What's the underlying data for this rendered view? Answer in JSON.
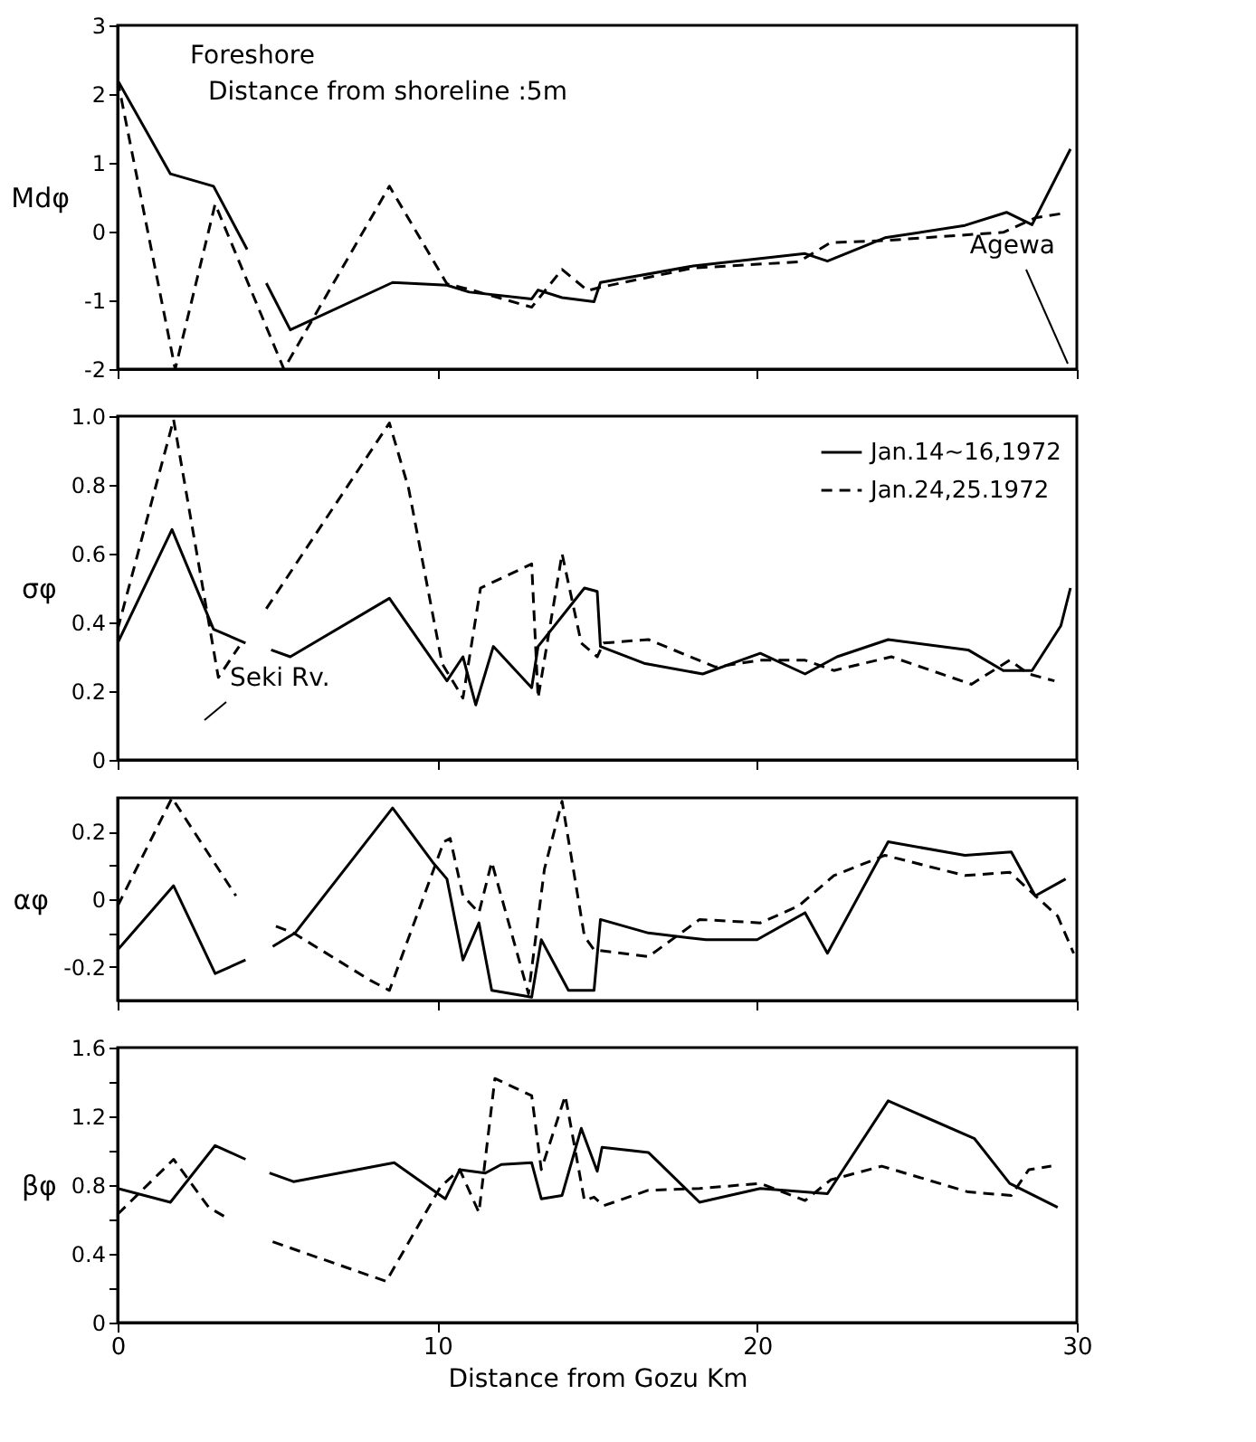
{
  "chart_data": [
    {
      "type": "line",
      "ylabel": "Mdφ",
      "xlim": [
        0,
        30
      ],
      "xticks": [
        0,
        10,
        20,
        30
      ],
      "ylim": [
        -2,
        3
      ],
      "yticks": [
        -2,
        -1,
        0,
        1,
        2,
        3
      ],
      "grid": false,
      "tick_labels": "y",
      "annotations": [
        "Foreshore",
        "Distance from shoreline :5m",
        "Agewa"
      ],
      "series": [
        {
          "color": "#000000",
          "line_style": "solid",
          "x": [
            0,
            1.65,
            3.0,
            4.05,
            4.3,
            4.65,
            5.4,
            8.6,
            10.3,
            11.0,
            12.95,
            13.15,
            13.9,
            14.9,
            15.1,
            18.0,
            21.5,
            22.2,
            24.0,
            26.5,
            27.8,
            28.6,
            29.8
          ],
          "values": [
            2.2,
            0.84,
            0.66,
            -0.26,
            null,
            -0.75,
            -1.43,
            -0.74,
            -0.78,
            -0.88,
            -0.98,
            -0.85,
            -0.96,
            -1.02,
            -0.74,
            -0.5,
            -0.32,
            -0.43,
            -0.09,
            0.09,
            0.28,
            0.1,
            1.2
          ]
        },
        {
          "color": "#000000",
          "line_style": "dashed",
          "x": [
            0,
            1.8,
            3.05,
            5.2,
            8.5,
            10.3,
            11.0,
            12.95,
            13.9,
            14.7,
            15.1,
            18.0,
            21.3,
            22.3,
            24.0,
            27.7,
            28.7,
            29.5
          ],
          "values": [
            2.2,
            -2.0,
            0.4,
            -2.0,
            0.66,
            -0.76,
            -0.84,
            -1.1,
            -0.55,
            -0.86,
            -0.81,
            -0.53,
            -0.44,
            -0.16,
            -0.13,
            -0.01,
            0.2,
            0.26
          ]
        }
      ]
    },
    {
      "type": "line",
      "ylabel": "σφ",
      "xlim": [
        0,
        30
      ],
      "xticks": [
        0,
        10,
        20,
        30
      ],
      "ylim": [
        0,
        1
      ],
      "yticks": [
        {
          "value": 0,
          "label": "0"
        },
        0.2,
        0.4,
        0.6,
        0.8,
        {
          "value": 1,
          "label": "1.0"
        }
      ],
      "grid": false,
      "tick_labels": "y",
      "legend": "top right",
      "annotations": [
        "Seki Rv."
      ],
      "series": [
        {
          "name": "Jan.14~16,1972",
          "color": "#000000",
          "line_style": "solid",
          "x": [
            0,
            1.7,
            3.0,
            4.0,
            4.3,
            4.8,
            5.4,
            8.5,
            10.3,
            10.8,
            11.2,
            11.75,
            12.95,
            13.15,
            14.6,
            15.0,
            15.1,
            16.5,
            18.3,
            20.1,
            21.5,
            22.5,
            24.1,
            26.6,
            27.7,
            28.6,
            29.5,
            29.8
          ],
          "values": [
            0.34,
            0.67,
            0.38,
            0.34,
            null,
            0.32,
            0.3,
            0.47,
            0.23,
            0.3,
            0.16,
            0.33,
            0.21,
            0.33,
            0.5,
            0.49,
            0.33,
            0.28,
            0.25,
            0.31,
            0.25,
            0.3,
            0.35,
            0.32,
            0.26,
            0.26,
            0.39,
            0.5
          ]
        },
        {
          "name": "Jan.24,25.1972",
          "color": "#000000",
          "line_style": "dashed",
          "x": [
            0,
            1.75,
            3.15,
            3.8,
            4.3,
            4.65,
            8.5,
            9.1,
            10.15,
            10.8,
            11.35,
            12.95,
            13.15,
            13.9,
            14.5,
            15.0,
            15.2,
            16.6,
            18.7,
            20.1,
            21.5,
            22.4,
            24.2,
            26.7,
            27.9,
            28.5,
            29.3
          ],
          "values": [
            0.38,
            0.99,
            0.24,
            0.33,
            null,
            0.44,
            0.98,
            0.79,
            0.28,
            0.18,
            0.5,
            0.57,
            0.18,
            0.6,
            0.34,
            0.3,
            0.34,
            0.35,
            0.27,
            0.29,
            0.29,
            0.26,
            0.3,
            0.22,
            0.29,
            0.25,
            0.23
          ]
        }
      ]
    },
    {
      "type": "line",
      "ylabel": "αφ",
      "xlim": [
        0,
        30
      ],
      "xticks": [
        0,
        10,
        20,
        30
      ],
      "ylim": [
        -0.3,
        0.3
      ],
      "yticks": [
        -0.2,
        {
          "value": -0.1,
          "label": null
        },
        0,
        {
          "value": 0.1,
          "label": null
        },
        0.2
      ],
      "grid": false,
      "tick_labels": "y",
      "series": [
        {
          "color": "#000000",
          "line_style": "solid",
          "x": [
            0,
            1.75,
            3.05,
            4.0,
            4.3,
            4.85,
            5.55,
            8.6,
            9.85,
            10.3,
            10.8,
            11.3,
            11.7,
            12.95,
            13.25,
            14.1,
            14.9,
            15.1,
            16.6,
            18.4,
            20.0,
            21.5,
            22.2,
            24.1,
            26.5,
            27.95,
            28.7,
            29.65
          ],
          "values": [
            -0.15,
            0.04,
            -0.22,
            -0.18,
            null,
            -0.14,
            -0.1,
            0.27,
            0.11,
            0.06,
            -0.18,
            -0.07,
            -0.27,
            -0.29,
            -0.12,
            -0.27,
            -0.27,
            -0.06,
            -0.1,
            -0.12,
            -0.12,
            -0.04,
            -0.16,
            0.17,
            0.13,
            0.14,
            0.01,
            0.06
          ]
        },
        {
          "color": "#000000",
          "line_style": "dashed",
          "x": [
            0,
            1.7,
            3.7,
            4.3,
            4.95,
            5.5,
            7.9,
            8.5,
            10.2,
            10.4,
            10.8,
            11.3,
            11.7,
            12.85,
            13.35,
            13.9,
            14.6,
            14.9,
            16.6,
            18.2,
            20.1,
            21.3,
            22.4,
            24.0,
            26.5,
            27.9,
            29.4,
            29.9
          ],
          "values": [
            -0.02,
            0.3,
            0.01,
            null,
            -0.08,
            -0.1,
            -0.24,
            -0.27,
            0.17,
            0.18,
            0.01,
            -0.04,
            0.11,
            -0.28,
            0.09,
            0.29,
            -0.11,
            -0.15,
            -0.17,
            -0.06,
            -0.07,
            -0.02,
            0.07,
            0.13,
            0.07,
            0.08,
            -0.05,
            -0.16
          ]
        }
      ]
    },
    {
      "type": "line",
      "xlabel": "Distance from Gozu Km",
      "ylabel": "βφ",
      "xlim": [
        0,
        30
      ],
      "xticks": [
        0,
        10,
        20,
        30
      ],
      "ylim": [
        0,
        1.6
      ],
      "yticks": [
        0,
        {
          "value": 0.2,
          "label": null
        },
        0.4,
        {
          "value": 0.6,
          "label": null
        },
        0.8,
        {
          "value": 1.0,
          "label": null
        },
        1.2,
        {
          "value": 1.4,
          "label": null
        },
        1.6
      ],
      "grid": false,
      "series": [
        {
          "color": "#000000",
          "line_style": "solid",
          "x": [
            0,
            1.65,
            3.05,
            4.0,
            4.3,
            4.75,
            5.5,
            8.65,
            10.25,
            10.7,
            11.5,
            12.0,
            12.95,
            13.25,
            13.9,
            14.5,
            15.0,
            15.15,
            16.6,
            18.2,
            20.1,
            22.2,
            24.1,
            26.8,
            27.9,
            29.4
          ],
          "values": [
            0.78,
            0.7,
            1.03,
            0.95,
            null,
            0.87,
            0.82,
            0.93,
            0.72,
            0.89,
            0.87,
            0.92,
            0.93,
            0.72,
            0.74,
            1.13,
            0.88,
            1.02,
            0.99,
            0.7,
            0.78,
            0.75,
            1.29,
            1.07,
            0.81,
            0.67
          ]
        },
        {
          "color": "#000000",
          "line_style": "dashed",
          "x": [
            0,
            1.75,
            2.85,
            3.5,
            4.3,
            4.85,
            8.4,
            10.1,
            10.7,
            11.3,
            11.8,
            12.95,
            13.25,
            14.0,
            14.6,
            14.9,
            15.2,
            16.6,
            18.2,
            20.1,
            21.5,
            22.3,
            23.9,
            26.6,
            27.95,
            28.5,
            29.2
          ],
          "values": [
            0.63,
            0.95,
            0.67,
            0.6,
            null,
            0.47,
            0.24,
            0.79,
            0.89,
            0.64,
            1.42,
            1.32,
            0.89,
            1.32,
            0.71,
            0.73,
            0.68,
            0.77,
            0.78,
            0.81,
            0.71,
            0.83,
            0.91,
            0.76,
            0.74,
            0.89,
            0.91
          ]
        }
      ]
    }
  ]
}
